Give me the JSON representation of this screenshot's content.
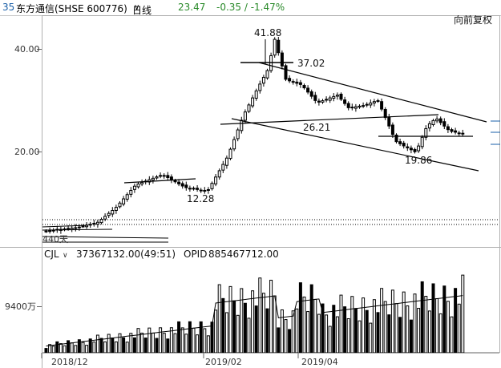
{
  "header": {
    "code_prefix": "35",
    "stock_name": "东方通信(SHSE 600776)",
    "period": "日线",
    "last_price": "23.47",
    "change": "-0.35 / -1.47%",
    "adjust_button": "向前复权"
  },
  "colors": {
    "up": "#000000",
    "down": "#000000",
    "trend": "#000000",
    "price_change": "#2a8a2a",
    "accent": "#1a5fa8"
  },
  "chart_data": [
    {
      "type": "candlestick",
      "title": "",
      "y_ticks": [
        "40.00",
        "20.00"
      ],
      "x_ticks": [
        "2018/12",
        "2019/02",
        "2019/04"
      ],
      "annotations": [
        "41.88",
        "37.02",
        "26.21",
        "12.28",
        "19.86"
      ],
      "bottom_label": "440天",
      "grid": true,
      "anchor_prices": {
        "2018/12/01": 4.5,
        "2018/12/15": 5.2,
        "2018/12/24": 6.2,
        "2019/01/01": 9.0,
        "2019/01/10": 13.5,
        "2019/01/22": 15.5,
        "2019/02/01": 13.0,
        "2019/02/11": 12.28,
        "2019/02/20": 19.0,
        "2019/02/27": 27.0,
        "2019/03/05": 32.0,
        "2019/03/10": 36.0,
        "2019/03/13": 41.88,
        "2019/03/18": 34.0,
        "2019/03/25": 33.0,
        "2019/04/01": 29.5,
        "2019/04/10": 31.0,
        "2019/04/15": 28.5,
        "2019/04/22": 29.0,
        "2019/04/28": 30.0,
        "2019/05/06": 22.0,
        "2019/05/10": 21.0,
        "2019/05/15": 19.86,
        "2019/05/20": 25.0,
        "2019/05/24": 26.5,
        "2019/05/30": 24.0,
        "2019/06/05": 23.47
      }
    },
    {
      "type": "bar",
      "title": "",
      "indicator": "CJL",
      "value_text": "37367132.00(49:51)",
      "opid_label": "OPID",
      "opid_value": "885467712.00",
      "y_tick": "9400万"
    }
  ]
}
